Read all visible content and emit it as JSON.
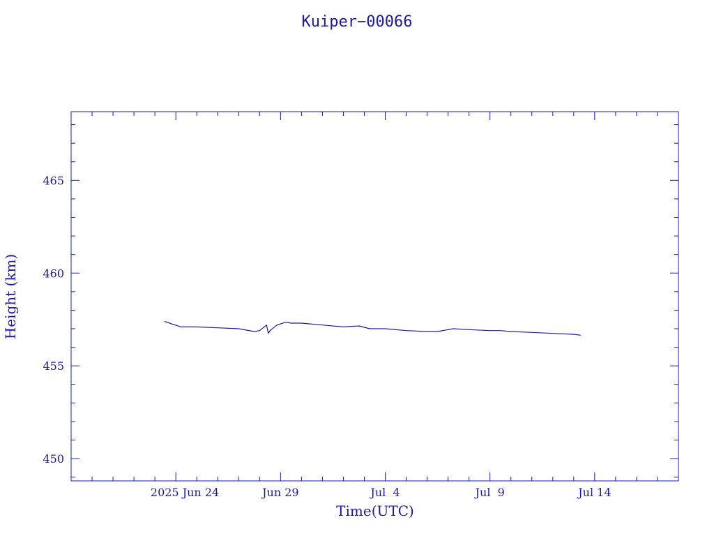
{
  "chart_data": {
    "type": "line",
    "title": "Kuiper−00066",
    "xlabel": "Time(UTC)",
    "ylabel": "Height (km)",
    "x_type": "date",
    "xlim": [
      "2025-06-19T00:00",
      "2025-07-18T00:00"
    ],
    "ylim": [
      448.8,
      468.7
    ],
    "y_ticks": [
      450,
      455,
      460,
      465
    ],
    "y_tick_labels": [
      "450",
      "455",
      "460",
      "465"
    ],
    "x_ticks": [
      "2025-06-24",
      "2025-06-29",
      "2025-07-04",
      "2025-07-09",
      "2025-07-14"
    ],
    "x_tick_labels": [
      "2025 Jun 24",
      "Jun 29",
      "Jul  4",
      "Jul  9",
      "Jul 14"
    ],
    "grid": false,
    "colors": {
      "axes": "#1a1aa6",
      "series": "#1a1aa6"
    },
    "series": [
      {
        "x": [
          "2025-06-23T11:00",
          "2025-06-23T20:00",
          "2025-06-24T06:00",
          "2025-06-25T00:00",
          "2025-06-26T00:00",
          "2025-06-27T00:00",
          "2025-06-27T18:00",
          "2025-06-28T00:00",
          "2025-06-28T08:00",
          "2025-06-28T10:00",
          "2025-06-28T12:00",
          "2025-06-28T20:00",
          "2025-06-29T06:00",
          "2025-06-29T12:00",
          "2025-06-30T00:00",
          "2025-07-01T00:00",
          "2025-07-02T00:00",
          "2025-07-02T18:00",
          "2025-07-03T06:00",
          "2025-07-04T00:00",
          "2025-07-05T00:00",
          "2025-07-06T00:00",
          "2025-07-06T12:00",
          "2025-07-07T06:00",
          "2025-07-08T00:00",
          "2025-07-09T00:00",
          "2025-07-09T12:00",
          "2025-07-10T00:00",
          "2025-07-11T00:00",
          "2025-07-12T00:00",
          "2025-07-13T00:00",
          "2025-07-13T08:00"
        ],
        "values": [
          457.4,
          457.25,
          457.1,
          457.1,
          457.05,
          457.0,
          456.85,
          456.9,
          457.2,
          456.75,
          456.9,
          457.2,
          457.35,
          457.3,
          457.3,
          457.2,
          457.1,
          457.15,
          457.0,
          457.0,
          456.9,
          456.85,
          456.85,
          457.0,
          456.95,
          456.9,
          456.9,
          456.85,
          456.8,
          456.75,
          456.7,
          456.65
        ]
      }
    ]
  }
}
